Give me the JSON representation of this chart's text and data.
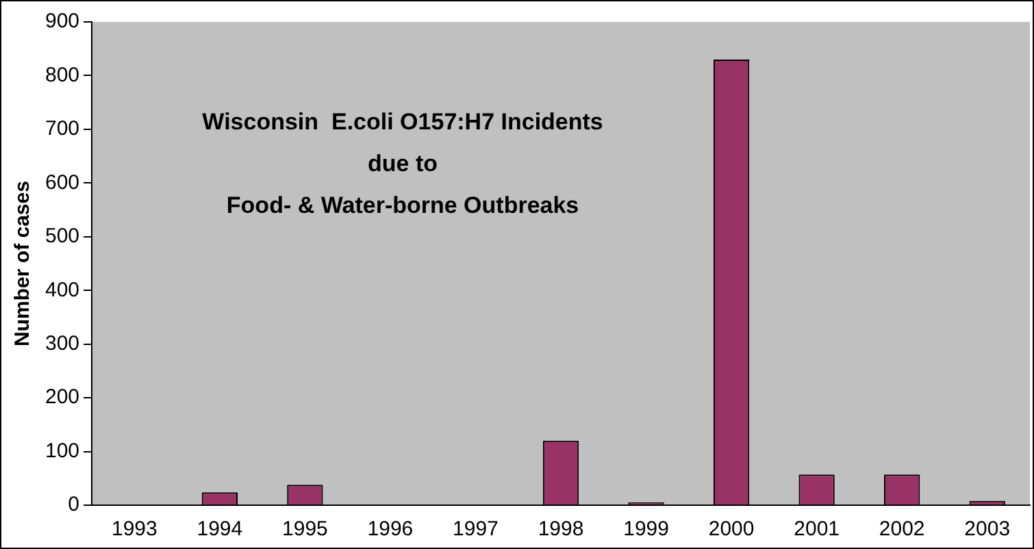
{
  "chart_data": {
    "type": "bar",
    "title": "Wisconsin  E.coli O157:H7 Incidents\ndue to\nFood- & Water-borne Outbreaks",
    "ylabel": "Number of cases",
    "categories": [
      "1993",
      "1994",
      "1995",
      "1996",
      "1997",
      "1998",
      "1999",
      "2000",
      "2001",
      "2002",
      "2003"
    ],
    "values": [
      0,
      24,
      38,
      0,
      0,
      120,
      5,
      830,
      57,
      57,
      8
    ],
    "color": "#993366",
    "ylim": [
      0,
      900
    ],
    "yticks": [
      0,
      100,
      200,
      300,
      400,
      500,
      600,
      700,
      800,
      900
    ],
    "grid": false,
    "legend": false
  }
}
